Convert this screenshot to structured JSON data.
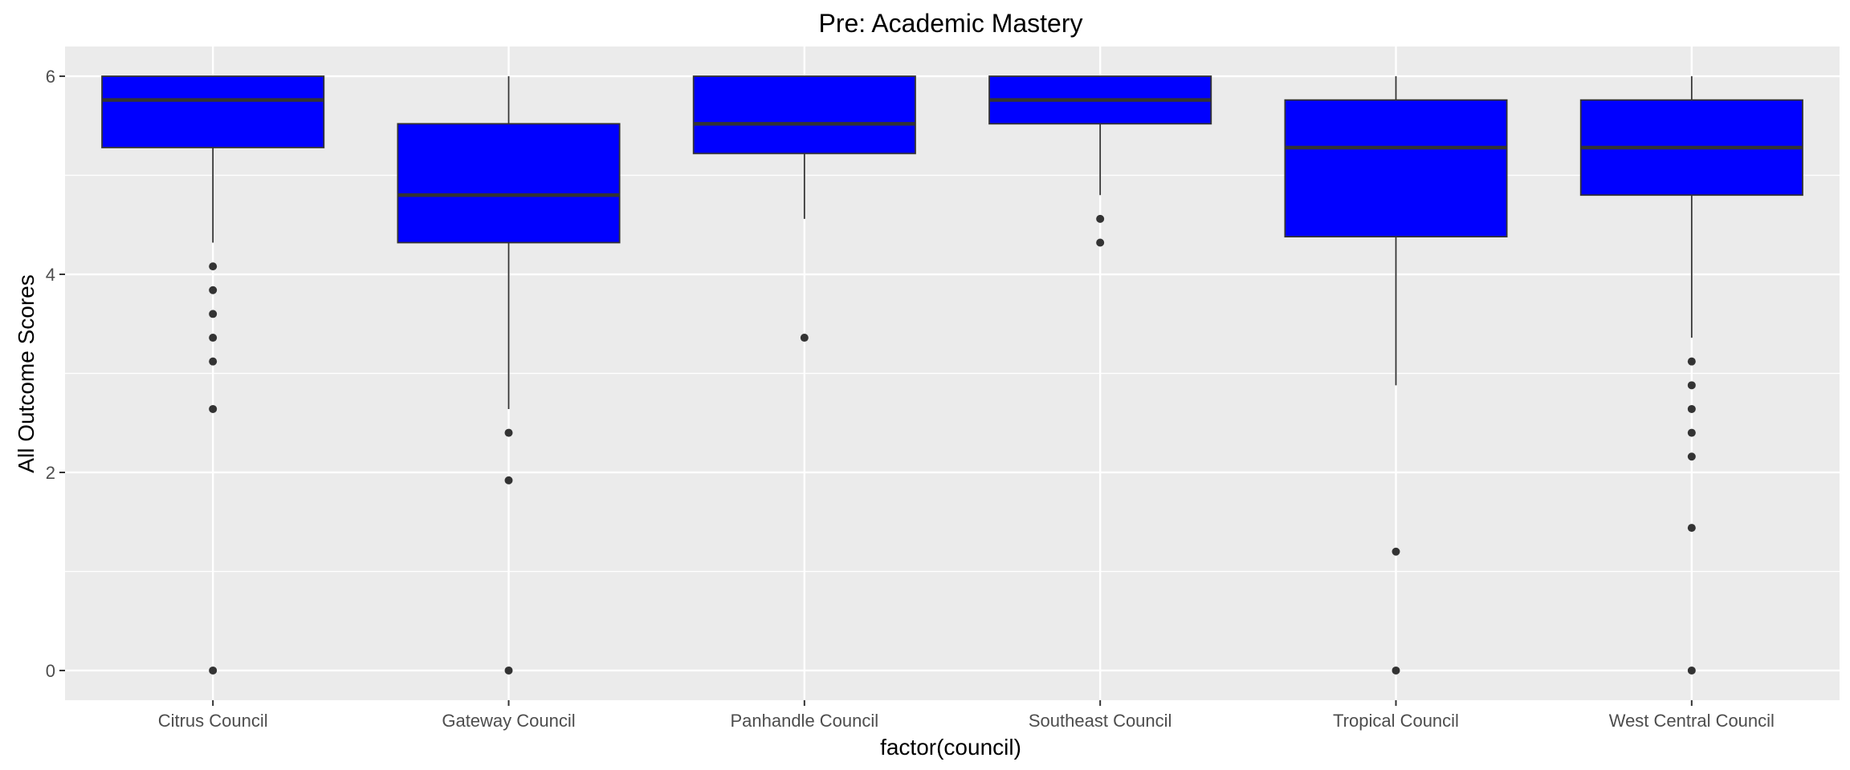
{
  "chart_data": {
    "type": "boxplot",
    "title": "Pre: Academic Mastery",
    "xlabel": "factor(council)",
    "ylabel": "All Outcome Scores",
    "ylim": [
      -0.3,
      6.3
    ],
    "yticks": [
      0,
      2,
      4,
      6
    ],
    "grid": true,
    "legend": "none",
    "colors": {
      "panel_bg": "#ebebeb",
      "grid": "#ffffff",
      "box_fill": "#0000ff",
      "box_border": "#333333",
      "outlier": "#333333",
      "tick_text": "#4d4d4d"
    },
    "categories": [
      "Citrus Council",
      "Gateway Council",
      "Panhandle Council",
      "Southeast Council",
      "Tropical Council",
      "West Central Council"
    ],
    "boxes": [
      {
        "lower_whisker": 4.32,
        "q1": 5.28,
        "median": 5.76,
        "q3": 6.0,
        "upper_whisker": 6.0,
        "outliers": [
          4.08,
          3.84,
          3.6,
          3.36,
          3.12,
          2.64,
          0.0
        ]
      },
      {
        "lower_whisker": 2.64,
        "q1": 4.32,
        "median": 4.8,
        "q3": 5.52,
        "upper_whisker": 6.0,
        "outliers": [
          2.4,
          1.92,
          0.0
        ]
      },
      {
        "lower_whisker": 4.56,
        "q1": 5.22,
        "median": 5.52,
        "q3": 6.0,
        "upper_whisker": 6.0,
        "outliers": [
          3.36
        ]
      },
      {
        "lower_whisker": 4.8,
        "q1": 5.52,
        "median": 5.76,
        "q3": 6.0,
        "upper_whisker": 6.0,
        "outliers": [
          4.56,
          4.32
        ]
      },
      {
        "lower_whisker": 2.88,
        "q1": 4.38,
        "median": 5.28,
        "q3": 5.76,
        "upper_whisker": 6.0,
        "outliers": [
          1.2,
          0.0
        ]
      },
      {
        "lower_whisker": 3.36,
        "q1": 4.8,
        "median": 5.28,
        "q3": 5.76,
        "upper_whisker": 6.0,
        "outliers": [
          3.12,
          2.88,
          2.64,
          2.4,
          2.16,
          1.44,
          0.0
        ]
      }
    ]
  }
}
